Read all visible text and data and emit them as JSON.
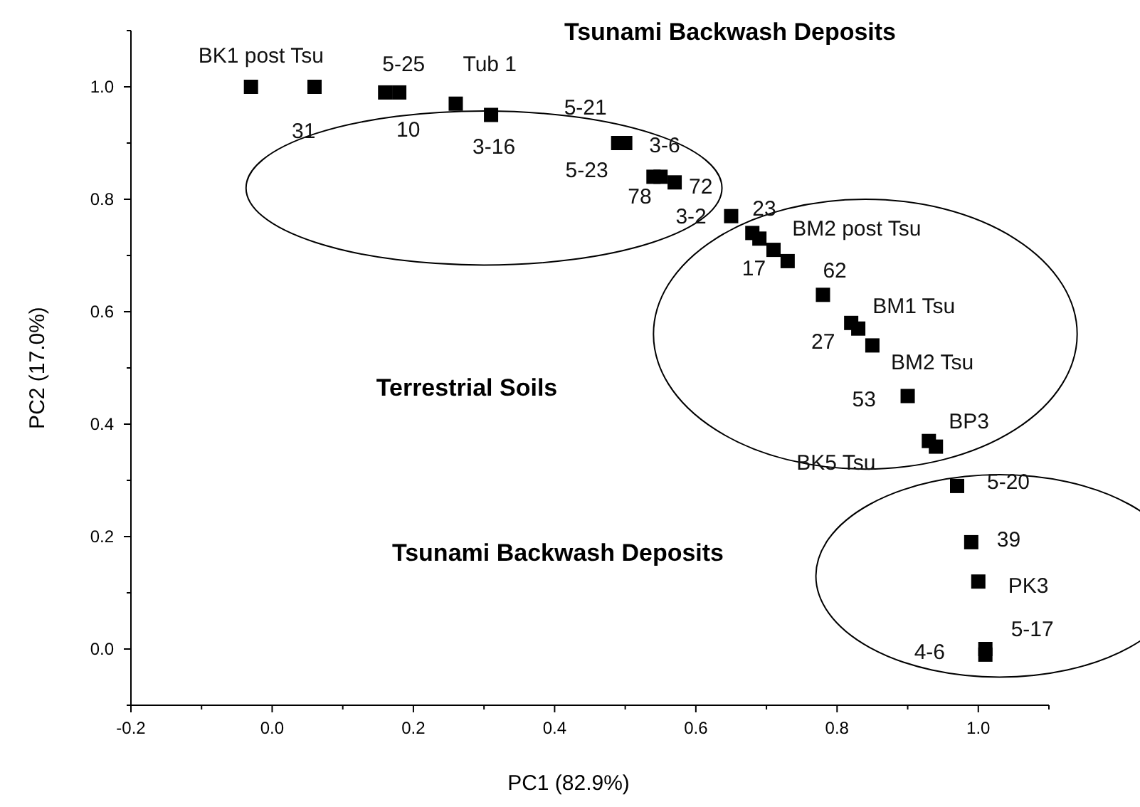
{
  "chart_data": {
    "type": "scatter",
    "xlabel": "PC1 (82.9%)",
    "ylabel": "PC2 (17.0%)",
    "marker": "square",
    "color": "#000000",
    "x": [
      -0.03,
      0.06,
      0.16,
      0.18,
      0.26,
      0.31,
      0.49,
      0.5,
      0.54,
      0.57,
      0.55,
      0.65,
      0.68,
      0.69,
      0.71,
      0.73,
      0.78,
      0.82,
      0.83,
      0.85,
      0.9,
      0.93,
      0.94,
      0.97,
      0.99,
      1.0,
      1.01,
      1.01
    ],
    "values": [
      1.0,
      1.0,
      0.99,
      0.99,
      0.97,
      0.95,
      0.9,
      0.9,
      0.84,
      0.83,
      0.84,
      0.77,
      0.74,
      0.73,
      0.71,
      0.69,
      0.63,
      0.58,
      0.57,
      0.54,
      0.45,
      0.37,
      0.36,
      0.29,
      0.19,
      0.12,
      0.0,
      -0.01
    ],
    "annotations": [
      "Tsunami Backwash Deposits",
      "Terrestrial Soils",
      "Tsunami Backwash Deposits",
      {
        "text": "BK1 post Tsu",
        "x": -0.03,
        "y": 1.0
      },
      {
        "text": "31",
        "x": 0.06,
        "y": 1.0
      },
      {
        "text": "5-25",
        "x": 0.16,
        "y": 0.99
      },
      {
        "text": "10",
        "x": 0.18,
        "y": 0.99
      },
      {
        "text": "Tub 1",
        "x": 0.26,
        "y": 0.97
      },
      {
        "text": "3-16",
        "x": 0.31,
        "y": 0.95
      },
      {
        "text": "5-21",
        "x": 0.49,
        "y": 0.9
      },
      {
        "text": "5-23",
        "x": 0.5,
        "y": 0.9
      },
      {
        "text": "3-6",
        "x": 0.54,
        "y": 0.84
      },
      {
        "text": "72",
        "x": 0.57,
        "y": 0.83
      },
      {
        "text": "78",
        "x": 0.55,
        "y": 0.84
      },
      {
        "text": "3-2",
        "x": 0.65,
        "y": 0.77
      },
      {
        "text": "23",
        "x": 0.68,
        "y": 0.74
      },
      {
        "text": "BM2 post Tsu",
        "x": 0.69,
        "y": 0.73
      },
      {
        "text": "17",
        "x": 0.73,
        "y": 0.69
      },
      {
        "text": "62",
        "x": 0.78,
        "y": 0.63
      },
      {
        "text": "BM1 Tsu",
        "x": 0.82,
        "y": 0.58
      },
      {
        "text": "27",
        "x": 0.83,
        "y": 0.57
      },
      {
        "text": "BM2 Tsu",
        "x": 0.85,
        "y": 0.54
      },
      {
        "text": "53",
        "x": 0.9,
        "y": 0.45
      },
      {
        "text": "BP3",
        "x": 0.93,
        "y": 0.37
      },
      {
        "text": "BK5 Tsu",
        "x": 0.94,
        "y": 0.36
      },
      {
        "text": "5-20",
        "x": 0.97,
        "y": 0.29
      },
      {
        "text": "39",
        "x": 0.99,
        "y": 0.19
      },
      {
        "text": "PK3",
        "x": 1.0,
        "y": 0.12
      },
      {
        "text": "5-17",
        "x": 1.01,
        "y": 0.0
      },
      {
        "text": "4-6",
        "x": 1.01,
        "y": -0.01
      }
    ],
    "xlim": [
      -0.2,
      1.1
    ],
    "ylim": [
      -0.1,
      1.1
    ],
    "xticks": [
      -0.2,
      {
        "value": -0.1,
        "label": null
      },
      "0.0",
      {
        "value": 0.1,
        "label": null
      },
      0.2,
      {
        "value": 0.3,
        "label": null
      },
      0.4,
      {
        "value": 0.5,
        "label": null
      },
      0.6,
      {
        "value": 0.7,
        "label": null
      },
      0.8,
      {
        "value": 0.9,
        "label": null
      },
      "1.0",
      {
        "value": 1.1,
        "label": null
      }
    ],
    "yticks": [
      {
        "value": -0.1,
        "label": null
      },
      {
        "value": 0,
        "label": "0.0"
      },
      {
        "value": 0.1,
        "label": null
      },
      0.2,
      {
        "value": 0.3,
        "label": null
      },
      0.4,
      {
        "value": 0.5,
        "label": null
      },
      0.6,
      {
        "value": 0.7,
        "label": null
      },
      0.8,
      {
        "value": 0.9,
        "label": null
      },
      {
        "value": 1,
        "label": "1.0"
      },
      {
        "value": 1.1,
        "label": null
      }
    ],
    "grid": false
  }
}
